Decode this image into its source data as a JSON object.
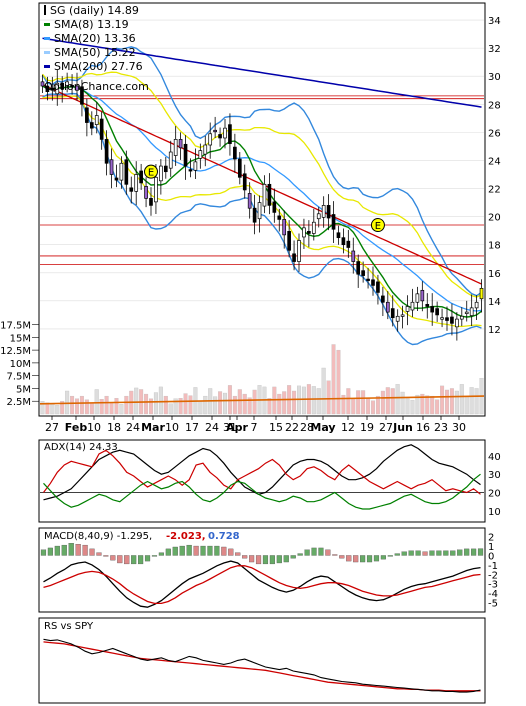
{
  "chart_data": [
    {
      "type": "line",
      "panel": "price",
      "source_label": "OptionChance.com",
      "legend": [
        {
          "label": "SG (daily) 14.89",
          "color": "#000000"
        },
        {
          "label": "SMA(8) 13.19",
          "color": "#008000"
        },
        {
          "label": "SMA(20) 13.36",
          "color": "#3399ff"
        },
        {
          "label": "SMA(50) 15.22",
          "color": "#99ccff"
        },
        {
          "label": "SMA(200) 27.76",
          "color": "#0000aa"
        }
      ],
      "y_ticks": [
        "12",
        "14",
        "16",
        "18",
        "20",
        "22",
        "24",
        "26",
        "28",
        "30",
        "32",
        "34"
      ],
      "ylim": [
        10.5,
        35
      ],
      "x_ticks": [
        "27",
        "Feb",
        "10",
        "18",
        "24",
        "Mar",
        "10",
        "17",
        "24",
        "31",
        "Apr",
        "7",
        "15",
        "22",
        "28",
        "May",
        "12",
        "19",
        "27",
        "Jun",
        "16",
        "23",
        "30"
      ],
      "earnings_markers": [
        {
          "label": "E",
          "x": 22,
          "y": 23.2
        },
        {
          "label": "E",
          "x": 68,
          "y": 19.4
        }
      ],
      "horizontal_levels": [
        28.4,
        28.6,
        19.4,
        17.2,
        16.6
      ],
      "closes": [
        29.3,
        28.9,
        29.0,
        29.5,
        29.1,
        29.6,
        29.3,
        29.0,
        28.0,
        26.7,
        26.3,
        27.2,
        25.5,
        23.8,
        23.0,
        22.6,
        23.8,
        22.3,
        21.8,
        23.0,
        22.4,
        21.3,
        20.8,
        22.8,
        23.6,
        23.2,
        24.6,
        25.5,
        24.9,
        23.6,
        23.3,
        23.9,
        24.7,
        25.1,
        25.9,
        26.1,
        25.6,
        26.3,
        25.2,
        24.1,
        22.8,
        21.9,
        20.6,
        19.6,
        21.0,
        22.3,
        20.8,
        20.3,
        19.8,
        18.7,
        17.6,
        16.8,
        18.3,
        19.2,
        18.8,
        19.6,
        20.2,
        20.8,
        19.9,
        19.1,
        18.5,
        18.0,
        17.8,
        16.8,
        15.9,
        15.8,
        15.5,
        15.1,
        14.6,
        13.9,
        13.2,
        12.8,
        12.9,
        13.0,
        13.6,
        13.9,
        14.5,
        14.0,
        13.6,
        13.2,
        13.0,
        12.8,
        12.6,
        12.4,
        12.7,
        12.9,
        13.2,
        13.5,
        13.9,
        14.89
      ],
      "sma_values": {
        "SMA(8)": 13.19,
        "SMA(20)": 13.36,
        "SMA(50)": 15.22,
        "SMA(200)": 27.76
      }
    },
    {
      "type": "bar",
      "panel": "volume",
      "y_ticks": [
        "2.5M",
        "5M",
        "7.5M",
        "10M",
        "12.5M",
        "15M",
        "17.5M"
      ],
      "ylim": [
        0,
        18
      ],
      "values": [
        2.5,
        2.2,
        1.9,
        1.7,
        2.5,
        4.5,
        3.5,
        3.0,
        3.5,
        2.8,
        2.2,
        4.8,
        2.9,
        3.5,
        2.2,
        3.1,
        1.9,
        3.5,
        4.5,
        5.1,
        4.8,
        3.9,
        3.0,
        4.2,
        5.3,
        3.5,
        2.0,
        3.0,
        3.1,
        4.0,
        3.6,
        5.2,
        2.5,
        3.5,
        5.0,
        3.4,
        4.4,
        4.1,
        5.6,
        3.5,
        4.8,
        3.9,
        3.2,
        4.7,
        5.6,
        5.3,
        3.1,
        5.3,
        3.9,
        4.4,
        5.6,
        4.5,
        5.5,
        5.3,
        5.8,
        5.4,
        5.0,
        9.0,
        6.5,
        13.6,
        12.5,
        3.7,
        5.0,
        3.0,
        4.6,
        4.6,
        3.2,
        2.6,
        3.5,
        4.5,
        5.2,
        5.0,
        5.8,
        4.3,
        3.0,
        2.7,
        3.7,
        3.9,
        3.6,
        3.5,
        2.8,
        5.5,
        4.7,
        5.0,
        4.5,
        5.8,
        3.4,
        5.2,
        5.0,
        7.0
      ],
      "average_line": [
        2.0,
        3.5
      ]
    },
    {
      "type": "line",
      "panel": "adx",
      "legend": [
        {
          "label": "ADX(14) 24.33"
        }
      ],
      "y_ticks": [
        "10",
        "20",
        "30",
        "40"
      ],
      "ylim": [
        5,
        47
      ],
      "reference_level": 20,
      "series": [
        {
          "name": "ADX(14) 24.33",
          "color": "#000000",
          "values": [
            16,
            17,
            18,
            20,
            22,
            26,
            30,
            34,
            38,
            40,
            42,
            43,
            42,
            41,
            38,
            35,
            32,
            30,
            31,
            34,
            37,
            40,
            42,
            44,
            43,
            40,
            36,
            31,
            27,
            23,
            21,
            19,
            20,
            23,
            27,
            31,
            35,
            37,
            38,
            38,
            37,
            35,
            32,
            29,
            27,
            27,
            28,
            30,
            33,
            37,
            40,
            43,
            45,
            46,
            44,
            41,
            38,
            36,
            35,
            34,
            32,
            30,
            27,
            24.33
          ]
        },
        {
          "color": "#cc0000",
          "values": [
            20,
            25,
            31,
            35,
            37,
            36,
            35,
            34,
            41,
            43,
            40,
            36,
            31,
            29,
            26,
            23,
            25,
            27,
            29,
            27,
            24,
            27,
            35,
            36,
            31,
            28,
            24,
            22,
            27,
            29,
            31,
            33,
            36,
            38,
            35,
            30,
            27,
            29,
            33,
            34,
            32,
            29,
            27,
            32,
            35,
            32,
            29,
            26,
            24,
            22,
            24,
            26,
            24,
            22,
            24,
            25,
            27,
            24,
            21,
            22,
            21,
            20,
            22,
            19
          ]
        },
        {
          "color": "#008000",
          "values": [
            25,
            21,
            17,
            14,
            12,
            13,
            15,
            17,
            19,
            18,
            16,
            15,
            18,
            21,
            24,
            26,
            24,
            22,
            23,
            25,
            26,
            23,
            19,
            16,
            15,
            17,
            20,
            24,
            26,
            25,
            22,
            19,
            17,
            16,
            15,
            16,
            18,
            17,
            15,
            15,
            16,
            18,
            20,
            17,
            14,
            12,
            11,
            11,
            12,
            13,
            14,
            16,
            18,
            19,
            17,
            15,
            14,
            14,
            15,
            17,
            20,
            23,
            27,
            30
          ]
        }
      ]
    },
    {
      "type": "line",
      "panel": "macd",
      "legend": {
        "label": "MACD(8,40,9) -1.295,",
        "signal": "-2.023,",
        "histogram": "0.728"
      },
      "legend_colors": {
        "signal": "#cc0000",
        "histogram": "#3366cc"
      },
      "y_ticks": [
        "-5",
        "-4",
        "-3",
        "-2",
        "-1",
        "0",
        "1",
        "2"
      ],
      "ylim": [
        -5.8,
        2.6
      ],
      "series": [
        {
          "name": "MACD(8,40,9) -1.295,",
          "color": "#000000",
          "values": [
            -2.8,
            -2.4,
            -1.9,
            -1.5,
            -1.0,
            -0.8,
            -0.7,
            -1.0,
            -1.5,
            -2.2,
            -3.0,
            -3.8,
            -4.5,
            -5.0,
            -5.4,
            -5.5,
            -5.2,
            -4.8,
            -4.2,
            -3.6,
            -3.0,
            -2.5,
            -2.2,
            -1.9,
            -1.5,
            -1.1,
            -0.8,
            -0.6,
            -0.8,
            -1.4,
            -2.0,
            -2.6,
            -3.0,
            -3.4,
            -3.7,
            -3.9,
            -3.7,
            -3.3,
            -2.8,
            -2.4,
            -2.2,
            -2.3,
            -2.8,
            -3.3,
            -3.8,
            -4.2,
            -4.5,
            -4.7,
            -4.8,
            -4.7,
            -4.4,
            -4.0,
            -3.6,
            -3.3,
            -3.1,
            -3.0,
            -2.8,
            -2.6,
            -2.4,
            -2.2,
            -1.9,
            -1.6,
            -1.4,
            -1.295
          ]
        },
        {
          "name": "-2.023,",
          "color": "#cc0000",
          "values": [
            -3.4,
            -3.2,
            -2.9,
            -2.6,
            -2.3,
            -2.0,
            -1.8,
            -1.7,
            -1.8,
            -2.1,
            -2.5,
            -3.0,
            -3.6,
            -4.1,
            -4.5,
            -4.9,
            -5.1,
            -5.1,
            -4.9,
            -4.5,
            -4.0,
            -3.6,
            -3.2,
            -2.9,
            -2.5,
            -2.1,
            -1.7,
            -1.3,
            -1.1,
            -1.1,
            -1.3,
            -1.7,
            -2.1,
            -2.5,
            -2.9,
            -3.2,
            -3.4,
            -3.5,
            -3.4,
            -3.2,
            -3.0,
            -2.9,
            -2.9,
            -3.0,
            -3.2,
            -3.5,
            -3.8,
            -4.0,
            -4.2,
            -4.3,
            -4.3,
            -4.2,
            -4.0,
            -3.8,
            -3.6,
            -3.4,
            -3.3,
            -3.1,
            -2.9,
            -2.7,
            -2.5,
            -2.3,
            -2.1,
            -2.023
          ]
        },
        {
          "name": "0.728",
          "color": "#3366cc",
          "values": [
            0.6,
            0.8,
            1.0,
            1.1,
            1.3,
            1.2,
            1.1,
            0.7,
            0.3,
            -0.1,
            -0.5,
            -0.8,
            -0.9,
            -0.9,
            -0.9,
            -0.6,
            -0.1,
            0.3,
            0.7,
            0.9,
            1.0,
            1.1,
            1.0,
            1.0,
            1.0,
            1.0,
            0.9,
            0.7,
            0.3,
            -0.3,
            -0.7,
            -0.9,
            -0.9,
            -0.9,
            -0.8,
            -0.7,
            -0.3,
            0.2,
            0.6,
            0.8,
            0.8,
            0.6,
            0.1,
            -0.3,
            -0.6,
            -0.7,
            -0.7,
            -0.7,
            -0.6,
            -0.4,
            -0.1,
            0.2,
            0.4,
            0.5,
            0.5,
            0.4,
            0.5,
            0.5,
            0.5,
            0.5,
            0.6,
            0.7,
            0.7,
            0.728
          ]
        }
      ]
    },
    {
      "type": "line",
      "panel": "relative-strength",
      "legend": [
        {
          "label": "RS vs SPY"
        }
      ],
      "series": [
        {
          "name": "RS vs SPY",
          "color": "#000000",
          "values": [
            0.92,
            0.9,
            0.91,
            0.88,
            0.85,
            0.8,
            0.74,
            0.7,
            0.72,
            0.75,
            0.78,
            0.74,
            0.7,
            0.66,
            0.62,
            0.6,
            0.62,
            0.64,
            0.6,
            0.58,
            0.62,
            0.66,
            0.64,
            0.6,
            0.58,
            0.56,
            0.54,
            0.56,
            0.6,
            0.62,
            0.58,
            0.54,
            0.5,
            0.48,
            0.46,
            0.48,
            0.44,
            0.42,
            0.4,
            0.38,
            0.34,
            0.32,
            0.3,
            0.28,
            0.27,
            0.26,
            0.24,
            0.23,
            0.22,
            0.21,
            0.2,
            0.19,
            0.18,
            0.17,
            0.16,
            0.15,
            0.14,
            0.14,
            0.13,
            0.13,
            0.12,
            0.12,
            0.13,
            0.15
          ]
        },
        {
          "color": "#cc0000",
          "values": [
            0.88,
            0.87,
            0.86,
            0.85,
            0.83,
            0.81,
            0.79,
            0.77,
            0.75,
            0.73,
            0.71,
            0.69,
            0.67,
            0.65,
            0.63,
            0.62,
            0.61,
            0.6,
            0.59,
            0.58,
            0.57,
            0.56,
            0.55,
            0.54,
            0.53,
            0.52,
            0.51,
            0.5,
            0.49,
            0.48,
            0.47,
            0.46,
            0.45,
            0.43,
            0.41,
            0.39,
            0.37,
            0.35,
            0.33,
            0.31,
            0.29,
            0.27,
            0.26,
            0.25,
            0.24,
            0.23,
            0.22,
            0.21,
            0.2,
            0.19,
            0.18,
            0.17,
            0.17,
            0.16,
            0.16,
            0.15,
            0.15,
            0.15,
            0.14,
            0.14,
            0.14,
            0.14,
            0.14,
            0.14
          ]
        }
      ]
    }
  ]
}
